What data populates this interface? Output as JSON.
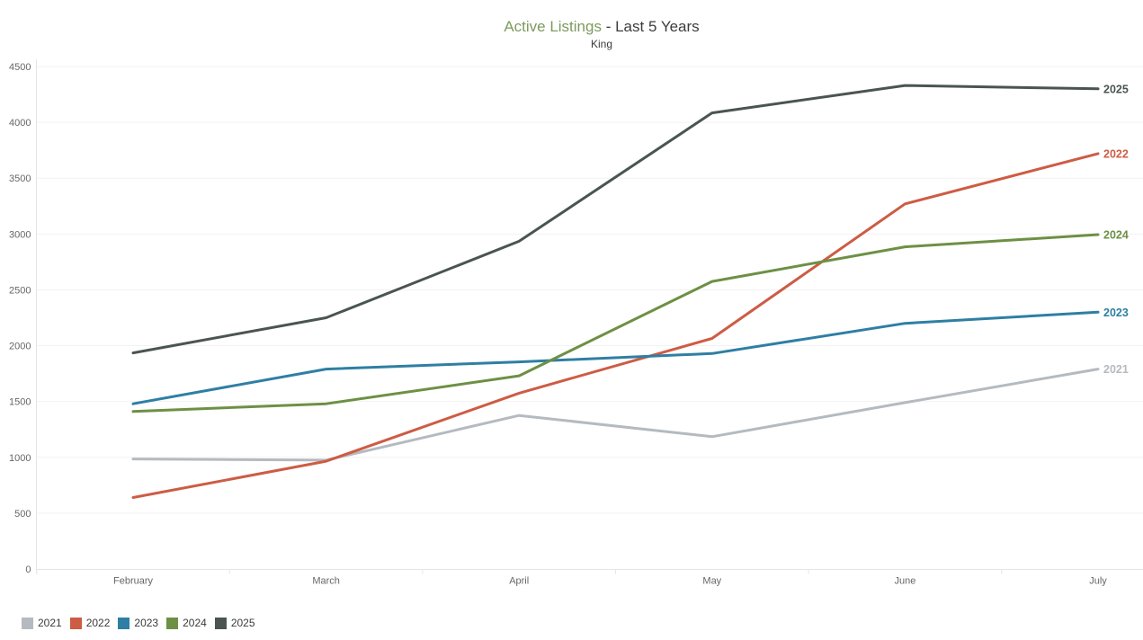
{
  "title": {
    "highlight": "Active Listings",
    "rest": " - Last 5 Years",
    "subtitle": "King"
  },
  "chart_data": {
    "type": "line",
    "title": "Active Listings - Last 5 Years",
    "subtitle": "King",
    "xlabel": "",
    "ylabel": "",
    "categories": [
      "February",
      "March",
      "April",
      "May",
      "June",
      "July"
    ],
    "series": [
      {
        "name": "2021",
        "color": "#b4bac0",
        "values": [
          985,
          975,
          1375,
          1185,
          1490,
          1790
        ]
      },
      {
        "name": "2022",
        "color": "#cd5c44",
        "values": [
          640,
          965,
          1575,
          2065,
          3270,
          3720
        ]
      },
      {
        "name": "2023",
        "color": "#2e7fa3",
        "values": [
          1480,
          1790,
          1855,
          1930,
          2200,
          2300
        ]
      },
      {
        "name": "2024",
        "color": "#6d9044",
        "values": [
          1410,
          1480,
          1730,
          2575,
          2885,
          2995
        ]
      },
      {
        "name": "2025",
        "color": "#4a5550",
        "values": [
          1935,
          2250,
          2935,
          4085,
          4330,
          4300
        ]
      }
    ],
    "ylim": [
      0,
      4500
    ],
    "ytick_step": 500,
    "ytick_labels": [
      "0",
      "500",
      "1000",
      "1500",
      "2000",
      "2500",
      "3000",
      "3500",
      "4000",
      "4500"
    ],
    "grid": "horizontal",
    "line_end_labels": true,
    "legend_position": "bottom-left",
    "colors": {
      "title_highlight": "#7d9b5e",
      "title_text": "#3c3c3c",
      "axis_line": "#e5e5e5",
      "grid_line": "#f2f2f2",
      "tick_text": "#666666"
    }
  }
}
